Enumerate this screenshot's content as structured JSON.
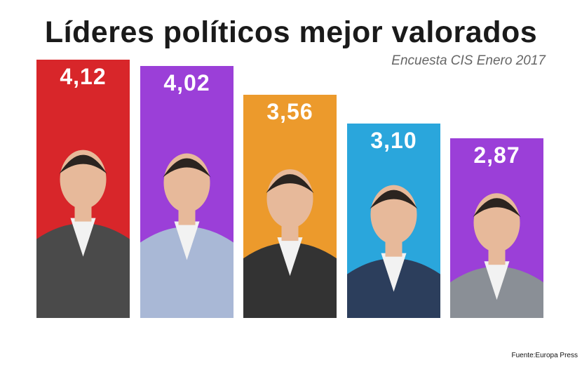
{
  "header": {
    "title": "Líderes políticos mejor valorados",
    "subtitle": "Encuesta CIS Enero 2017"
  },
  "footer": {
    "source": "Fuente:Europa Press"
  },
  "chart_data": {
    "type": "bar",
    "categories": [
      "",
      "",
      "",
      "",
      ""
    ],
    "values": [
      4.12,
      4.02,
      3.56,
      3.1,
      2.87
    ],
    "labels": [
      "4,12",
      "4,02",
      "3,56",
      "3,10",
      "2,87"
    ],
    "colors": [
      "#d8262a",
      "#9b3fd8",
      "#ec9a2c",
      "#2aa6dc",
      "#9b3fd8"
    ],
    "suit_colors": [
      "#4a4a4a",
      "#a9b8d6",
      "#333333",
      "#2c3e5c",
      "#8a8f96"
    ],
    "title": "Líderes políticos mejor valorados",
    "subtitle": "Encuesta CIS Enero 2017",
    "xlabel": "",
    "ylabel": "",
    "grid": false,
    "legend": "none"
  }
}
